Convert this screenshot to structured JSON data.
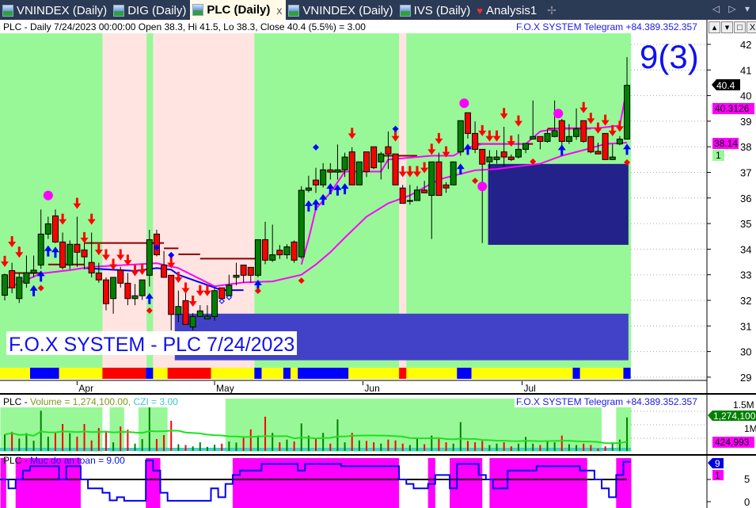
{
  "tabs": [
    {
      "label": "VNINDEX (Daily)",
      "icon": "chart-icon"
    },
    {
      "label": "DIG (Daily)",
      "icon": "chart-icon"
    },
    {
      "label": "PLC (Daily)",
      "icon": "chart-icon",
      "active": true,
      "close": "x"
    },
    {
      "label": "VNINDEX (Daily)",
      "icon": "chart-icon"
    },
    {
      "label": "IVS (Daily)",
      "icon": "chart-icon"
    },
    {
      "label": "Analysis1",
      "icon": "analysis-icon"
    }
  ],
  "tab_add": "✢",
  "tab_nav": "◁ ▷ ▾",
  "pane_controls": [
    "▴",
    "▾",
    "□",
    "X"
  ],
  "main": {
    "header": "PLC - Daily 7/24/2023 00:00:00 Open 38.3, Hi 41.5, Lo 38.3, Close 40.4 (5.5%)   = 3.00",
    "telegram": "F.O.X SYSTEM Telegram +84.389.352.357",
    "big_label": "9(3)",
    "watermark": "F.O.X SYSTEM - PLC 7/24/2023",
    "price_ticks": [
      "42",
      "41",
      "40",
      "39",
      "38",
      "37",
      "36",
      "35",
      "34",
      "33",
      "32",
      "31",
      "30",
      "29"
    ],
    "tags": {
      "close": "40.4",
      "ma_fast": "40.3126",
      "ma_slow": "38.14",
      "count": "1"
    },
    "months": [
      {
        "label": "Apr",
        "bar": 10
      },
      {
        "label": "May",
        "bar": 29
      },
      {
        "label": "Jun",
        "bar": 49.5
      },
      {
        "label": "Jul",
        "bar": 71.5
      }
    ],
    "colors": {
      "up": "#008000",
      "down": "#ff0000",
      "bull_zone": "#98f898",
      "bear_zone": "#ffe4e1",
      "ma": "#ff00ff",
      "resist": "#8b0000",
      "support": "#0000ff"
    },
    "ohlc": [
      [
        32.2,
        33.05,
        32.0,
        33.0
      ],
      [
        33.16,
        33.47,
        32.28,
        32.49
      ],
      [
        32.07,
        33.1,
        31.9,
        32.9
      ],
      [
        32.67,
        33.75,
        32.49,
        33.08
      ],
      [
        33.07,
        33.75,
        32.9,
        33.18
      ],
      [
        33.38,
        35.55,
        33.23,
        34.59
      ],
      [
        34.59,
        35.27,
        34.4,
        34.99
      ],
      [
        35.3,
        35.55,
        34.24,
        34.28
      ],
      [
        34.28,
        34.65,
        33.21,
        33.29
      ],
      [
        33.38,
        34.34,
        33.21,
        34.19
      ],
      [
        34.19,
        35.27,
        33.31,
        33.88
      ],
      [
        33.97,
        34.24,
        33.21,
        33.7
      ],
      [
        33.48,
        34.65,
        32.9,
        33.07
      ],
      [
        33.07,
        33.47,
        32.69,
        32.8
      ],
      [
        32.8,
        32.9,
        31.61,
        31.87
      ],
      [
        32.07,
        32.9,
        31.48,
        32.9
      ],
      [
        33.18,
        33.31,
        32.5,
        32.67
      ],
      [
        32.67,
        33.07,
        31.81,
        32.07
      ],
      [
        32.07,
        32.64,
        31.81,
        32.18
      ],
      [
        32.18,
        32.8,
        32.02,
        32.8
      ],
      [
        32.98,
        34.76,
        32.54,
        34.37
      ],
      [
        34.59,
        34.76,
        33.72,
        33.78
      ],
      [
        33.38,
        33.93,
        32.9,
        32.9
      ],
      [
        32.98,
        32.98,
        30.83,
        31.45
      ],
      [
        31.45,
        32.38,
        31.14,
        31.76
      ],
      [
        31.99,
        32.33,
        31.04,
        31.06
      ],
      [
        30.96,
        31.5,
        30.83,
        31.37
      ],
      [
        31.37,
        31.81,
        31.37,
        31.59
      ],
      [
        31.28,
        31.81,
        31.28,
        31.38
      ],
      [
        31.37,
        32.49,
        31.2,
        32.38
      ],
      [
        32.49,
        32.49,
        32.02,
        32.07
      ],
      [
        32.18,
        33.0,
        32.18,
        32.59
      ],
      [
        32.9,
        33.47,
        32.59,
        32.98
      ],
      [
        33.38,
        33.38,
        32.69,
        32.98
      ],
      [
        33.29,
        33.3,
        32.69,
        32.98
      ],
      [
        32.98,
        34.37,
        32.9,
        34.37
      ],
      [
        34.37,
        35.07,
        33.41,
        33.57
      ],
      [
        33.57,
        34.96,
        33.5,
        33.78
      ],
      [
        33.96,
        34.16,
        33.62,
        33.78
      ],
      [
        33.78,
        34.19,
        33.62,
        34.09
      ],
      [
        34.28,
        34.34,
        33.47,
        33.57
      ],
      [
        33.7,
        36.46,
        33.62,
        36.3
      ],
      [
        36.3,
        36.87,
        36.22,
        36.39
      ],
      [
        36.7,
        37.18,
        36.2,
        36.51
      ],
      [
        36.51,
        37.36,
        36.41,
        37.1
      ],
      [
        37.1,
        37.36,
        36.72,
        37.01
      ],
      [
        37.01,
        38.09,
        36.72,
        37.1
      ],
      [
        37.1,
        37.77,
        36.82,
        37.6
      ],
      [
        37.8,
        37.98,
        36.51,
        36.51
      ],
      [
        36.51,
        37.41,
        36.51,
        37.41
      ],
      [
        37.8,
        37.8,
        36.82,
        37.03
      ],
      [
        38.0,
        38.0,
        37.13,
        37.18
      ],
      [
        37.41,
        37.8,
        36.72,
        37.72
      ],
      [
        38.0,
        38.6,
        37.13,
        37.72
      ],
      [
        37.72,
        37.72,
        36.51,
        36.51
      ],
      [
        36.39,
        36.51,
        35.79,
        35.79
      ],
      [
        35.9,
        36.51,
        35.74,
        35.9
      ],
      [
        35.9,
        36.46,
        35.9,
        36.31
      ],
      [
        36.31,
        36.67,
        36.2,
        36.2
      ],
      [
        36.1,
        37.41,
        34.4,
        37.41
      ],
      [
        37.41,
        37.77,
        36.1,
        36.1
      ],
      [
        36.51,
        36.62,
        36.2,
        36.39
      ],
      [
        36.51,
        37.41,
        36.51,
        37.41
      ],
      [
        37.8,
        39.02,
        37.65,
        39.02
      ],
      [
        39.33,
        39.33,
        38.32,
        38.52
      ],
      [
        38.52,
        38.99,
        37.75,
        37.9
      ],
      [
        37.9,
        37.9,
        34.24,
        37.32
      ],
      [
        37.41,
        37.87,
        37.13,
        37.6
      ],
      [
        37.5,
        37.87,
        37.34,
        37.6
      ],
      [
        37.8,
        38.78,
        37.23,
        37.6
      ],
      [
        37.6,
        37.7,
        37.44,
        37.5
      ],
      [
        37.6,
        38.49,
        37.54,
        37.9
      ],
      [
        37.9,
        38.13,
        37.75,
        38.13
      ],
      [
        38.3,
        39.81,
        38.3,
        38.4
      ],
      [
        38.4,
        38.4,
        37.9,
        38.21
      ],
      [
        38.21,
        38.68,
        38.16,
        38.52
      ],
      [
        38.4,
        39.81,
        38.37,
        38.63
      ],
      [
        39.02,
        39.09,
        38.0,
        38.21
      ],
      [
        38.21,
        38.89,
        38.11,
        38.4
      ],
      [
        38.4,
        39.5,
        38.27,
        38.71
      ],
      [
        39.02,
        39.02,
        38.16,
        38.21
      ],
      [
        38.4,
        38.4,
        37.75,
        37.8
      ],
      [
        37.82,
        38.16,
        37.72,
        37.72
      ],
      [
        38.52,
        38.52,
        37.5,
        37.5
      ],
      [
        37.5,
        38.11,
        37.5,
        37.6
      ],
      [
        38.11,
        38.42,
        38.06,
        38.3
      ],
      [
        38.3,
        41.5,
        38.3,
        40.4
      ]
    ],
    "bear_zones": [
      [
        13.5,
        19.6
      ],
      [
        20.5,
        34.5
      ],
      [
        54.5,
        55.5
      ]
    ],
    "trend_strip": [
      [
        3.5,
        7.5,
        "#0000ff"
      ],
      [
        13.5,
        19.5,
        "#ff0000"
      ],
      [
        19.5,
        20.5,
        "#0000ff"
      ],
      [
        22.5,
        28.5,
        "#ff0000"
      ],
      [
        34.5,
        35.5,
        "#0000ff"
      ],
      [
        38.5,
        39.5,
        "#0000ff"
      ],
      [
        40.5,
        47.5,
        "#0000ff"
      ],
      [
        54.5,
        55.5,
        "#ff0000"
      ],
      [
        62.5,
        64.5,
        "#0000ff"
      ],
      [
        78.5,
        79.5,
        "#0000ff"
      ],
      [
        85.5,
        86.5,
        "#0000ff"
      ]
    ],
    "zones": [
      {
        "bars": [
          23.5,
          86.2
        ],
        "price": [
          29.66,
          31.48
        ],
        "color": "#4242c8"
      },
      {
        "bars": [
          66.8,
          86.2
        ],
        "price": [
          34.17,
          37.33
        ],
        "color": "#22228a"
      }
    ],
    "ma_slow": [
      [
        0,
        32.43
      ],
      [
        5,
        33.05
      ],
      [
        9,
        33.18
      ],
      [
        12,
        33.31
      ],
      [
        21,
        33.45
      ],
      [
        24,
        33.26
      ],
      [
        29,
        32.55
      ],
      [
        33,
        32.7
      ],
      [
        37,
        32.74
      ],
      [
        41,
        33.0
      ],
      [
        43,
        33.4
      ],
      [
        45,
        33.88
      ],
      [
        47,
        34.45
      ],
      [
        50,
        35.27
      ],
      [
        53,
        35.79
      ],
      [
        56,
        36.1
      ],
      [
        58,
        36.41
      ],
      [
        60,
        36.72
      ],
      [
        62,
        36.87
      ],
      [
        65,
        37.08
      ],
      [
        68,
        37.13
      ],
      [
        74,
        37.34
      ],
      [
        77,
        37.65
      ],
      [
        80,
        37.87
      ],
      [
        83,
        38.11
      ],
      [
        86,
        38.16
      ]
    ],
    "ma_fast": [
      [
        41,
        33.4
      ],
      [
        42,
        34.4
      ],
      [
        43,
        35.58
      ],
      [
        45,
        36.2
      ],
      [
        47,
        37.03
      ],
      [
        52,
        37.03
      ],
      [
        53,
        37.5
      ],
      [
        59,
        37.65
      ],
      [
        62,
        37.65
      ],
      [
        64,
        37.96
      ],
      [
        66,
        38.11
      ],
      [
        72,
        38.11
      ],
      [
        74,
        38.6
      ],
      [
        77,
        38.73
      ],
      [
        82,
        38.73
      ],
      [
        85,
        38.83
      ],
      [
        86,
        40.31
      ]
    ],
    "resistance": [
      [
        1,
        5,
        33.07
      ],
      [
        6,
        11,
        33.4
      ],
      [
        11,
        22,
        34.24
      ],
      [
        22,
        24,
        34.03
      ],
      [
        24,
        27,
        33.8
      ],
      [
        27,
        35,
        33.63
      ],
      [
        45,
        51,
        37.03
      ],
      [
        52,
        57,
        37.65
      ],
      [
        65,
        73,
        38.11
      ],
      [
        75,
        81,
        38.71
      ]
    ],
    "support": [
      [
        11,
        33.26
      ],
      [
        18,
        33.15
      ],
      [
        21,
        33.26
      ],
      [
        23,
        33.2
      ],
      [
        24,
        33.0
      ],
      [
        26,
        32.8
      ],
      [
        28,
        32.6
      ],
      [
        30,
        32.4
      ],
      [
        33,
        32.4
      ]
    ],
    "sell_arrows": [
      [
        0,
        33.52
      ],
      [
        1,
        34.29
      ],
      [
        2,
        33.88
      ],
      [
        8,
        35.17
      ],
      [
        10,
        35.79
      ],
      [
        11,
        34.45
      ],
      [
        12,
        35.17
      ],
      [
        13,
        33.98
      ],
      [
        14,
        33.78
      ],
      [
        15,
        33.41
      ],
      [
        16,
        33.78
      ],
      [
        17,
        33.57
      ],
      [
        18,
        33.16
      ],
      [
        19,
        33.21
      ],
      [
        23,
        33.47
      ],
      [
        24,
        32.9
      ],
      [
        25,
        32.48
      ],
      [
        26,
        31.97
      ],
      [
        27,
        32.38
      ],
      [
        28,
        32.38
      ],
      [
        48,
        38.52
      ],
      [
        54,
        38.42
      ],
      [
        55,
        37.03
      ],
      [
        56,
        37.03
      ],
      [
        57,
        37.03
      ],
      [
        58,
        37.18
      ],
      [
        59,
        37.9
      ],
      [
        60,
        38.32
      ],
      [
        61,
        37.8
      ],
      [
        66,
        38.63
      ],
      [
        67,
        38.42
      ],
      [
        68,
        38.42
      ],
      [
        69,
        39.3
      ],
      [
        70,
        38.22
      ],
      [
        71,
        39.01
      ],
      [
        80,
        39.53
      ],
      [
        81,
        39.11
      ],
      [
        82,
        38.73
      ],
      [
        83,
        39.04
      ],
      [
        84,
        38.63
      ],
      [
        85,
        38.8
      ]
    ],
    "buy_arrows": [
      [
        4,
        32.38
      ],
      [
        5,
        32.95
      ],
      [
        6,
        33.93
      ],
      [
        7,
        33.88
      ],
      [
        20,
        32.07
      ],
      [
        35,
        32.59
      ],
      [
        42,
        35.69
      ],
      [
        43,
        35.74
      ],
      [
        44,
        35.94
      ],
      [
        45,
        36.36
      ],
      [
        46,
        36.31
      ],
      [
        47,
        36.36
      ],
      [
        63,
        37.13
      ],
      [
        64,
        37.9
      ],
      [
        77,
        37.87
      ],
      [
        86,
        37.9
      ]
    ],
    "dots": [
      [
        5,
        32.48,
        "#ff0000"
      ],
      [
        20,
        31.6,
        "#ff0000"
      ],
      [
        35,
        32.37,
        "#ff0000"
      ],
      [
        41,
        32.77,
        "#ff0000"
      ],
      [
        65,
        36.67,
        "#ff0000"
      ],
      [
        73,
        37.42,
        "#ff0000"
      ],
      [
        86,
        37.39,
        "#ff0000"
      ],
      [
        21,
        34.07,
        "#0000ff"
      ],
      [
        23,
        33.77,
        "#0000ff"
      ],
      [
        43,
        37.98,
        "#0000ff"
      ],
      [
        54,
        38.7,
        "#0000ff"
      ]
    ],
    "hollow_dots": [
      [
        30,
        31.97
      ],
      [
        31,
        32.12
      ]
    ],
    "circles": [
      [
        6,
        36.1
      ],
      [
        63.5,
        39.7
      ],
      [
        66,
        36.45
      ],
      [
        76.5,
        39.3
      ]
    ]
  },
  "volume": {
    "prefix": "PLC - ",
    "label": "Volume = 1,274,100.00,",
    "czi": "CZI = 3.00",
    "telegram": "F.O.X SYSTEM Telegram +84.389.352.357",
    "ticks": [
      "1.5M",
      "1M"
    ],
    "tag_volume": "1,274,100",
    "tag_ma": "424,993",
    "values": [
      640000,
      740000,
      490000,
      690000,
      410000,
      1520000,
      560000,
      690000,
      1030000,
      690000,
      560000,
      1030000,
      420000,
      880000,
      780000,
      350000,
      940000,
      820000,
      300000,
      470000,
      2000000,
      470000,
      620000,
      1150000,
      280000,
      250000,
      200000,
      350000,
      180000,
      260000,
      300000,
      380000,
      340000,
      520000,
      830000,
      600000,
      1300000,
      700000,
      350000,
      450000,
      380000,
      1050000,
      600000,
      500000,
      700000,
      300000,
      1200000,
      350000,
      700000,
      420000,
      400000,
      350000,
      300000,
      450000,
      420000,
      300000,
      250000,
      500000,
      280000,
      600000,
      500000,
      350000,
      300000,
      1100000,
      400000,
      350000,
      400000,
      250000,
      300000,
      350000,
      200000,
      300000,
      550000,
      300000,
      250000,
      400000,
      350000,
      600000,
      280000,
      250000,
      300000,
      250000,
      120000,
      200000,
      350000,
      450000,
      1274100
    ],
    "bg_zones": [
      [
        -0.6,
        13.5
      ],
      [
        14.5,
        16.5
      ],
      [
        18.5,
        22.5
      ],
      [
        30.5,
        82.5
      ],
      [
        84.5,
        86.6
      ]
    ]
  },
  "safety": {
    "prefix": "PLC - ",
    "label": "Muc do an toan = 9.00",
    "ticks": [
      "5",
      "0"
    ],
    "tag_value": "9",
    "tag_count": "1",
    "values": [
      5,
      3,
      5,
      7,
      8,
      8,
      8,
      8,
      5,
      8,
      8,
      5,
      3,
      3,
      2,
      0.3,
      1,
      0.2,
      0.2,
      0.2,
      9.3,
      7,
      2,
      0.2,
      0.2,
      0.2,
      0.2,
      0.2,
      0.2,
      3,
      1,
      4,
      6,
      7,
      7,
      7,
      8.5,
      8.5,
      8.5,
      8.5,
      8.5,
      7,
      8.5,
      8.5,
      8.5,
      8.5,
      8.5,
      8,
      8,
      8,
      8,
      8,
      8,
      8,
      8,
      5,
      4,
      3,
      3,
      4,
      6,
      6,
      3,
      8.5,
      8.5,
      8.5,
      6,
      5,
      3,
      3,
      7,
      7,
      7,
      7,
      8,
      8,
      8,
      8,
      8,
      8,
      7,
      7,
      5,
      3,
      1,
      6,
      9
    ],
    "zones": [
      [
        -0.6,
        0.2
      ],
      [
        1.5,
        10.5
      ],
      [
        19.5,
        21.5
      ],
      [
        31.5,
        54.5
      ],
      [
        58.5,
        59.5
      ],
      [
        61.5,
        66
      ],
      [
        67,
        80.5
      ],
      [
        84.5,
        86.6
      ]
    ],
    "zone_color": "#ff00ff"
  }
}
